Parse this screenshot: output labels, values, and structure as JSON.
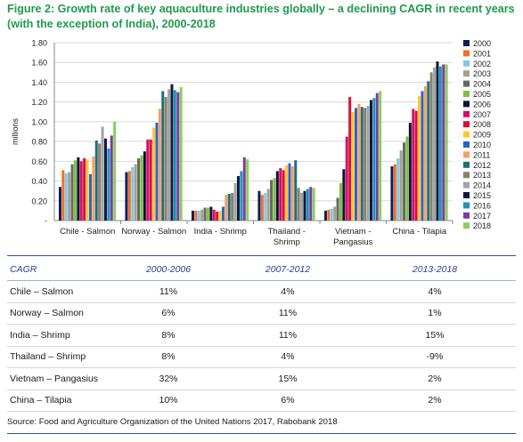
{
  "figure": {
    "title": "Figure 2: Growth rate of key aquaculture industries globally – a declining CAGR in recent years (with the exception of India), 2000-2018"
  },
  "chart_data": {
    "type": "bar",
    "ylabel": "millions",
    "ylim": [
      0,
      1.8
    ],
    "yticks": [
      "-",
      "0.20",
      "0.40",
      "0.60",
      "0.80",
      "1.00",
      "1.20",
      "1.40",
      "1.60",
      "1.80"
    ],
    "grid": true,
    "legend_position": "right",
    "categories": [
      "Chile - Salmon",
      "Norway - Salmon",
      "India - Shrimp",
      "Thailand - Shrimp",
      "Vietnam - Pangasius",
      "China - Tilapia"
    ],
    "category_lines": [
      [
        "Chile - Salmon"
      ],
      [
        "Norway - Salmon"
      ],
      [
        "India - Shrimp"
      ],
      [
        "Thailand -",
        "Shrimp"
      ],
      [
        "Vietnam -",
        "Pangasius"
      ],
      [
        "China - Tilapia"
      ]
    ],
    "series": [
      {
        "name": "2000",
        "color": "#0b1e5b",
        "values": [
          0.34,
          0.49,
          0.1,
          0.3,
          0.1,
          0.55
        ]
      },
      {
        "name": "2001",
        "color": "#f36f21",
        "values": [
          0.51,
          0.5,
          0.1,
          0.26,
          0.11,
          0.57
        ]
      },
      {
        "name": "2002",
        "color": "#7fc8ee",
        "values": [
          0.48,
          0.54,
          0.1,
          0.28,
          0.12,
          0.63
        ]
      },
      {
        "name": "2003",
        "color": "#a89f8d",
        "values": [
          0.49,
          0.57,
          0.11,
          0.32,
          0.14,
          0.71
        ]
      },
      {
        "name": "2004",
        "color": "#5f6b63",
        "values": [
          0.57,
          0.63,
          0.13,
          0.41,
          0.23,
          0.79
        ]
      },
      {
        "name": "2005",
        "color": "#7dc142",
        "values": [
          0.61,
          0.66,
          0.13,
          0.43,
          0.38,
          0.85
        ]
      },
      {
        "name": "2006",
        "color": "#111133",
        "values": [
          0.64,
          0.7,
          0.14,
          0.5,
          0.52,
          0.99
        ]
      },
      {
        "name": "2007",
        "color": "#d4106e",
        "values": [
          0.6,
          0.82,
          0.11,
          0.53,
          0.85,
          1.13
        ]
      },
      {
        "name": "2008",
        "color": "#d6103d",
        "values": [
          0.63,
          0.82,
          0.09,
          0.51,
          1.25,
          1.11
        ]
      },
      {
        "name": "2009",
        "color": "#ffc72c",
        "values": [
          0.62,
          0.94,
          0.1,
          0.56,
          1.1,
          1.26
        ]
      },
      {
        "name": "2010",
        "color": "#2a64c6",
        "values": [
          0.47,
          0.99,
          0.14,
          0.58,
          1.14,
          1.31
        ]
      },
      {
        "name": "2011",
        "color": "#f7a062",
        "values": [
          0.65,
          1.13,
          0.26,
          0.55,
          1.18,
          1.36
        ]
      },
      {
        "name": "2012",
        "color": "#1f6f7a",
        "values": [
          0.81,
          1.31,
          0.27,
          0.61,
          1.15,
          1.41
        ]
      },
      {
        "name": "2013",
        "color": "#8a806a",
        "values": [
          0.78,
          1.25,
          0.28,
          0.33,
          1.14,
          1.5
        ]
      },
      {
        "name": "2014",
        "color": "#a0a4a8",
        "values": [
          0.95,
          1.33,
          0.38,
          0.28,
          1.16,
          1.55
        ]
      },
      {
        "name": "2015",
        "color": "#10183e",
        "values": [
          0.83,
          1.38,
          0.45,
          0.3,
          1.22,
          1.61
        ]
      },
      {
        "name": "2016",
        "color": "#1e94b8",
        "values": [
          0.73,
          1.32,
          0.5,
          0.32,
          1.24,
          1.56
        ]
      },
      {
        "name": "2017",
        "color": "#7e3aa5",
        "values": [
          0.86,
          1.3,
          0.64,
          0.34,
          1.29,
          1.58
        ]
      },
      {
        "name": "2018",
        "color": "#8ecf5a",
        "values": [
          1.0,
          1.35,
          0.62,
          0.33,
          1.31,
          1.58
        ]
      }
    ]
  },
  "table": {
    "headers": [
      "CAGR",
      "2000-2006",
      "2007-2012",
      "2013-2018"
    ],
    "rows": [
      [
        "Chile – Salmon",
        "11%",
        "4%",
        "4%"
      ],
      [
        "Norway – Salmon",
        "6%",
        "11%",
        "1%"
      ],
      [
        "India – Shrimp",
        "8%",
        "11%",
        "15%"
      ],
      [
        "Thailand – Shrimp",
        "8%",
        "4%",
        "-9%"
      ],
      [
        "Vietnam – Pangasius",
        "32%",
        "15%",
        "2%"
      ],
      [
        "China – Tilapia",
        "10%",
        "6%",
        "2%"
      ]
    ]
  },
  "source": "Source: Food and Agriculture Organization of the United Nations 2017, Rabobank 2018"
}
